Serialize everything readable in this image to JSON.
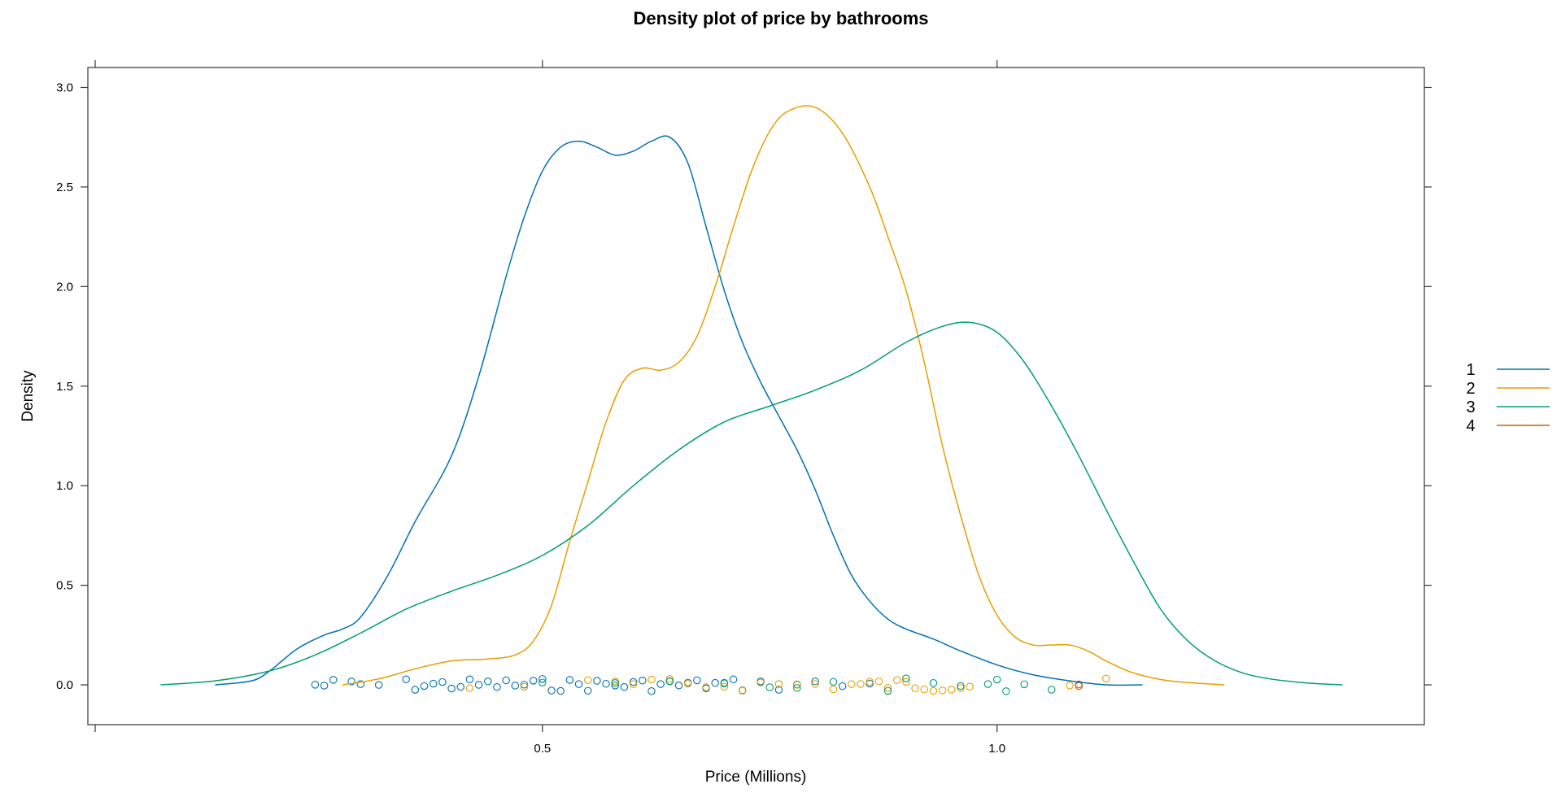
{
  "chart_data": {
    "type": "line",
    "subtype": "density",
    "title": "Density plot of price by bathrooms",
    "xlabel": "Price (Millions)",
    "ylabel": "Density",
    "xlim": [
      0.0,
      1.47
    ],
    "ylim": [
      -0.2,
      3.1
    ],
    "x_ticks": [
      0.5,
      1.0
    ],
    "x_tick_labels": [
      "0.5",
      "1.0"
    ],
    "y_ticks": [
      0.0,
      0.5,
      1.0,
      1.5,
      2.0,
      2.5,
      3.0
    ],
    "y_tick_labels": [
      "0.0",
      "0.5",
      "1.0",
      "1.5",
      "2.0",
      "2.5",
      "3.0"
    ],
    "grid": false,
    "legend_position": "right",
    "series": [
      {
        "name": "1",
        "color": "#0072B2",
        "x": [
          0.14,
          0.18,
          0.2,
          0.23,
          0.26,
          0.28,
          0.3,
          0.33,
          0.36,
          0.4,
          0.43,
          0.46,
          0.48,
          0.5,
          0.52,
          0.54,
          0.56,
          0.58,
          0.6,
          0.62,
          0.64,
          0.66,
          0.68,
          0.7,
          0.72,
          0.74,
          0.76,
          0.78,
          0.8,
          0.82,
          0.84,
          0.86,
          0.88,
          0.9,
          0.93,
          0.96,
          1.0,
          1.04,
          1.08,
          1.12,
          1.16
        ],
        "y": [
          0.0,
          0.02,
          0.07,
          0.18,
          0.25,
          0.28,
          0.34,
          0.55,
          0.82,
          1.15,
          1.55,
          2.05,
          2.35,
          2.58,
          2.7,
          2.73,
          2.7,
          2.66,
          2.68,
          2.73,
          2.75,
          2.62,
          2.3,
          1.98,
          1.72,
          1.52,
          1.35,
          1.18,
          0.98,
          0.75,
          0.55,
          0.42,
          0.33,
          0.28,
          0.23,
          0.17,
          0.1,
          0.05,
          0.02,
          0.0,
          0.0
        ]
      },
      {
        "name": "2",
        "color": "#E69F00",
        "x": [
          0.28,
          0.32,
          0.36,
          0.4,
          0.44,
          0.47,
          0.49,
          0.51,
          0.53,
          0.55,
          0.57,
          0.59,
          0.61,
          0.63,
          0.65,
          0.67,
          0.69,
          0.71,
          0.73,
          0.75,
          0.77,
          0.8,
          0.83,
          0.86,
          0.88,
          0.9,
          0.92,
          0.94,
          0.96,
          0.98,
          1.0,
          1.02,
          1.04,
          1.06,
          1.08,
          1.1,
          1.12,
          1.15,
          1.19,
          1.25
        ],
        "y": [
          0.0,
          0.03,
          0.08,
          0.12,
          0.13,
          0.15,
          0.22,
          0.4,
          0.72,
          1.02,
          1.32,
          1.53,
          1.59,
          1.58,
          1.62,
          1.75,
          2.0,
          2.3,
          2.58,
          2.78,
          2.88,
          2.9,
          2.77,
          2.5,
          2.25,
          1.98,
          1.62,
          1.2,
          0.85,
          0.55,
          0.35,
          0.24,
          0.2,
          0.2,
          0.2,
          0.17,
          0.12,
          0.06,
          0.02,
          0.0
        ]
      },
      {
        "name": "3",
        "color": "#009E73",
        "x": [
          0.08,
          0.14,
          0.2,
          0.25,
          0.3,
          0.35,
          0.4,
          0.45,
          0.5,
          0.55,
          0.6,
          0.65,
          0.7,
          0.75,
          0.8,
          0.85,
          0.9,
          0.94,
          0.97,
          1.0,
          1.03,
          1.06,
          1.09,
          1.12,
          1.15,
          1.18,
          1.21,
          1.24,
          1.27,
          1.3,
          1.34,
          1.38
        ],
        "y": [
          0.0,
          0.02,
          0.07,
          0.15,
          0.26,
          0.38,
          0.47,
          0.55,
          0.65,
          0.8,
          1.0,
          1.18,
          1.32,
          1.4,
          1.48,
          1.58,
          1.72,
          1.8,
          1.82,
          1.77,
          1.62,
          1.4,
          1.15,
          0.88,
          0.62,
          0.38,
          0.22,
          0.12,
          0.06,
          0.03,
          0.01,
          0.0
        ]
      },
      {
        "name": "4",
        "color": "#D55E00",
        "x": [],
        "y": []
      }
    ],
    "rug": {
      "series_1_x": [
        0.25,
        0.26,
        0.27,
        0.29,
        0.3,
        0.32,
        0.35,
        0.36,
        0.37,
        0.38,
        0.39,
        0.4,
        0.41,
        0.42,
        0.43,
        0.44,
        0.45,
        0.46,
        0.47,
        0.48,
        0.49,
        0.5,
        0.51,
        0.52,
        0.53,
        0.54,
        0.55,
        0.56,
        0.57,
        0.58,
        0.59,
        0.6,
        0.61,
        0.62,
        0.63,
        0.64,
        0.65,
        0.66,
        0.67,
        0.68,
        0.69,
        0.7,
        0.71,
        0.72,
        0.74,
        0.76,
        0.78,
        0.8,
        0.83,
        0.86
      ],
      "series_2_x": [
        0.42,
        0.48,
        0.55,
        0.58,
        0.6,
        0.62,
        0.64,
        0.66,
        0.68,
        0.7,
        0.72,
        0.74,
        0.76,
        0.78,
        0.8,
        0.82,
        0.84,
        0.85,
        0.86,
        0.87,
        0.88,
        0.89,
        0.9,
        0.91,
        0.92,
        0.93,
        0.94,
        0.95,
        0.96,
        0.97,
        1.08,
        1.12
      ],
      "series_3_x": [
        0.5,
        0.58,
        0.64,
        0.7,
        0.75,
        0.78,
        0.82,
        0.88,
        0.9,
        0.93,
        0.96,
        0.99,
        1.0,
        1.01,
        1.03,
        1.06
      ],
      "series_4_x": [
        1.09,
        1.09
      ]
    }
  }
}
